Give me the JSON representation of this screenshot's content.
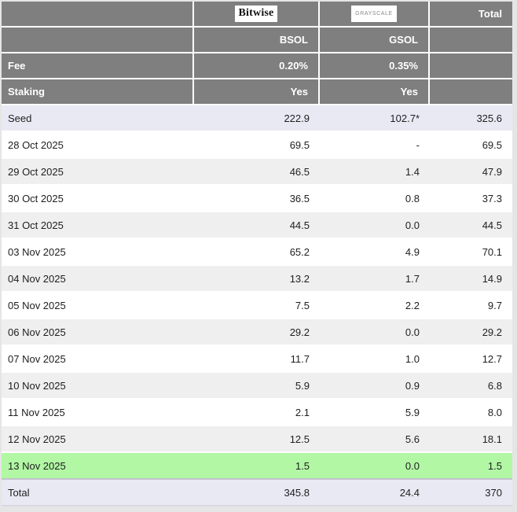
{
  "colors": {
    "page_background": "#e5e5e5",
    "header_background": "#7f7f7f",
    "header_text": "#ffffff",
    "row_white": "#ffffff",
    "row_gray": "#efefef",
    "row_lavender": "#e9e9f4",
    "row_green": "#b1f7a4",
    "body_text": "#1e1e1e",
    "grayscale_logo_text": "#8a8a8a",
    "bitwise_logo_text": "#111111"
  },
  "header": {
    "bitwise_logo": "Bitwise",
    "grayscale_logo": "GRAYSCALE",
    "total_label": "Total",
    "ticker_row": {
      "bsol": "BSOL",
      "gsol": "GSOL"
    },
    "fee_row": {
      "label": "Fee",
      "bsol": "0.20%",
      "gsol": "0.35%"
    },
    "staking_row": {
      "label": "Staking",
      "bsol": "Yes",
      "gsol": "Yes"
    }
  },
  "rows": [
    {
      "label": "Seed",
      "bsol": "222.9",
      "gsol": "102.7*",
      "total": "325.6",
      "style": "lavender"
    },
    {
      "label": "28 Oct 2025",
      "bsol": "69.5",
      "gsol": "-",
      "total": "69.5",
      "style": "white"
    },
    {
      "label": "29 Oct 2025",
      "bsol": "46.5",
      "gsol": "1.4",
      "total": "47.9",
      "style": "gray"
    },
    {
      "label": "30 Oct 2025",
      "bsol": "36.5",
      "gsol": "0.8",
      "total": "37.3",
      "style": "white"
    },
    {
      "label": "31 Oct 2025",
      "bsol": "44.5",
      "gsol": "0.0",
      "total": "44.5",
      "style": "gray"
    },
    {
      "label": "03 Nov 2025",
      "bsol": "65.2",
      "gsol": "4.9",
      "total": "70.1",
      "style": "white"
    },
    {
      "label": "04 Nov 2025",
      "bsol": "13.2",
      "gsol": "1.7",
      "total": "14.9",
      "style": "gray"
    },
    {
      "label": "05 Nov 2025",
      "bsol": "7.5",
      "gsol": "2.2",
      "total": "9.7",
      "style": "white"
    },
    {
      "label": "06 Nov 2025",
      "bsol": "29.2",
      "gsol": "0.0",
      "total": "29.2",
      "style": "gray"
    },
    {
      "label": "07 Nov 2025",
      "bsol": "11.7",
      "gsol": "1.0",
      "total": "12.7",
      "style": "white"
    },
    {
      "label": "10 Nov 2025",
      "bsol": "5.9",
      "gsol": "0.9",
      "total": "6.8",
      "style": "gray"
    },
    {
      "label": "11 Nov 2025",
      "bsol": "2.1",
      "gsol": "5.9",
      "total": "8.0",
      "style": "white"
    },
    {
      "label": "12 Nov 2025",
      "bsol": "12.5",
      "gsol": "5.6",
      "total": "18.1",
      "style": "gray"
    },
    {
      "label": "13 Nov 2025",
      "bsol": "1.5",
      "gsol": "0.0",
      "total": "1.5",
      "style": "green"
    },
    {
      "label": "Total",
      "bsol": "345.8",
      "gsol": "24.4",
      "total": "370",
      "style": "total"
    }
  ],
  "chart_data": {
    "type": "table",
    "columns": [
      "",
      "BSOL",
      "GSOL",
      "Total"
    ],
    "issuers": [
      "Bitwise",
      "GRAYSCALE"
    ],
    "fees": {
      "BSOL": "0.20%",
      "GSOL": "0.35%"
    },
    "staking": {
      "BSOL": "Yes",
      "GSOL": "Yes"
    },
    "rows": [
      [
        "Seed",
        222.9,
        "102.7*",
        325.6
      ],
      [
        "28 Oct 2025",
        69.5,
        "-",
        69.5
      ],
      [
        "29 Oct 2025",
        46.5,
        1.4,
        47.9
      ],
      [
        "30 Oct 2025",
        36.5,
        0.8,
        37.3
      ],
      [
        "31 Oct 2025",
        44.5,
        0.0,
        44.5
      ],
      [
        "03 Nov 2025",
        65.2,
        4.9,
        70.1
      ],
      [
        "04 Nov 2025",
        13.2,
        1.7,
        14.9
      ],
      [
        "05 Nov 2025",
        7.5,
        2.2,
        9.7
      ],
      [
        "06 Nov 2025",
        29.2,
        0.0,
        29.2
      ],
      [
        "07 Nov 2025",
        11.7,
        1.0,
        12.7
      ],
      [
        "10 Nov 2025",
        5.9,
        0.9,
        6.8
      ],
      [
        "11 Nov 2025",
        2.1,
        5.9,
        8.0
      ],
      [
        "12 Nov 2025",
        12.5,
        5.6,
        18.1
      ],
      [
        "13 Nov 2025",
        1.5,
        0.0,
        1.5
      ],
      [
        "Total",
        345.8,
        24.4,
        370
      ]
    ],
    "highlight": {
      "green_row": "13 Nov 2025",
      "lavender_rows": [
        "Seed",
        "Total"
      ]
    }
  }
}
